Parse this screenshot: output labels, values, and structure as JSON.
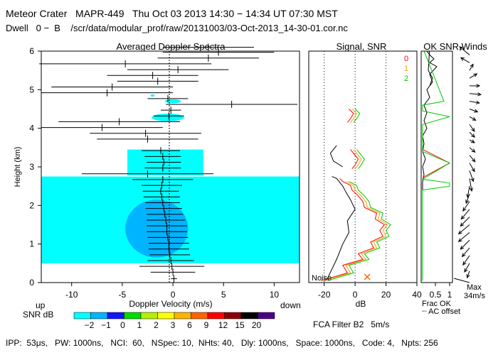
{
  "header": {
    "title": "Meteor Crater   MAPR-449   Thu Oct 03 2013 14:30 − 14:34 UT 07:30 MST",
    "subtitle": "Dwell   0 −  B    /scr/data/modular_prof/raw/20131003/03-Oct-2013_14-30-01.cor.nc"
  },
  "footer": {
    "params": "IPP:  53μs,   PW: 1000ns,   NCI:  60,   NSpec: 10,  NHts: 40,   Dly: 1000ns,   Space: 1000ns,   Code: 4,   Npts: 256",
    "filter": "FCA Filter B2   5m/s"
  },
  "colors": {
    "zero_line": "#000000",
    "red": "#ff0000",
    "orange": "#ffa500",
    "green": "#00c800"
  },
  "chart_data": [
    {
      "type": "heatmap",
      "title": "Averaged Doppler Spectra",
      "xlabel": "Doppler Velocity (m/s)",
      "ylabel": "Height (km)",
      "xlim": [
        -13,
        12.5
      ],
      "ylim": [
        0,
        6
      ],
      "xticks": [
        -10,
        -5,
        0,
        5,
        10
      ],
      "yticks": [
        0,
        1,
        2,
        3,
        4,
        5,
        6
      ],
      "corner_left": "up",
      "corner_right": "down",
      "colorbar": {
        "label": "SNR dB",
        "ticks": [
          "−2",
          "−1",
          "0",
          "1",
          "2",
          "3",
          "6",
          "9",
          "12",
          "15",
          "20"
        ],
        "colors": [
          "#00ffff",
          "#00b4ff",
          "#1414ff",
          "#00dc00",
          "#b4f000",
          "#ffff00",
          "#ffb400",
          "#ff6400",
          "#ff0000",
          "#8b0000",
          "#000000",
          "#4b0082"
        ]
      },
      "blobs": [
        {
          "v": -1.2,
          "h": 1.05,
          "dv": 2.6,
          "dh": 0.18,
          "level": 6
        },
        {
          "v": -1.2,
          "h": 1.05,
          "dv": 3.4,
          "dh": 0.32,
          "level": 5
        },
        {
          "v": -1.3,
          "h": 1.3,
          "dv": 4.0,
          "dh": 0.55,
          "level": 4
        },
        {
          "v": -1.4,
          "h": 1.6,
          "dv": 3.0,
          "dh": 1.0,
          "level": 3
        },
        {
          "v": -1.5,
          "h": 1.5,
          "dv": 5.2,
          "dh": 1.2,
          "level": 2
        },
        {
          "v": -1.6,
          "h": 1.4,
          "dv": 6.2,
          "dh": 1.5,
          "level": 1
        },
        {
          "v": -1.0,
          "h": 3.1,
          "dv": 2.0,
          "dh": 0.2,
          "level": 1
        },
        {
          "v": -1.0,
          "h": 3.1,
          "dv": 3.4,
          "dh": 0.3,
          "level": 0
        },
        {
          "v": -0.5,
          "h": 4.28,
          "dv": 2.0,
          "dh": 0.14,
          "level": 1
        },
        {
          "v": -0.5,
          "h": 4.28,
          "dv": 3.2,
          "dh": 0.2,
          "level": 0
        },
        {
          "v": 0.0,
          "h": 4.7,
          "dv": 1.6,
          "dh": 0.1,
          "level": 0
        },
        {
          "v": -2.0,
          "h": 4.85,
          "dv": 0.4,
          "dh": 0.06,
          "level": 0
        }
      ],
      "bands": [
        {
          "h0": 0.5,
          "h1": 2.75,
          "level": 0
        },
        {
          "h0": 2.78,
          "h1": 3.45,
          "level": 0,
          "v0": -4.5,
          "v1": 3.0
        }
      ],
      "moments": [
        {
          "h": 0.1,
          "v": 0.1,
          "w": 0.3
        },
        {
          "h": 0.27,
          "v": 0.0,
          "w": 2.2
        },
        {
          "h": 0.42,
          "v": -0.1,
          "w": 3.2
        },
        {
          "h": 0.57,
          "v": -0.2,
          "w": 2.3
        },
        {
          "h": 0.72,
          "v": -0.3,
          "w": 2.0
        },
        {
          "h": 0.87,
          "v": -0.4,
          "w": 2.0
        },
        {
          "h": 1.02,
          "v": -0.4,
          "w": 2.0
        },
        {
          "h": 1.17,
          "v": -0.5,
          "w": 2.0
        },
        {
          "h": 1.32,
          "v": -0.6,
          "w": 2.0
        },
        {
          "h": 1.47,
          "v": -0.6,
          "w": 2.0
        },
        {
          "h": 1.62,
          "v": -0.7,
          "w": 1.9
        },
        {
          "h": 1.77,
          "v": -0.8,
          "w": 1.8
        },
        {
          "h": 1.92,
          "v": -0.9,
          "w": 1.8
        },
        {
          "h": 2.07,
          "v": -1.0,
          "w": 1.7
        },
        {
          "h": 2.22,
          "v": -1.1,
          "w": 1.8
        },
        {
          "h": 2.37,
          "v": -1.2,
          "w": 1.8
        },
        {
          "h": 2.52,
          "v": -1.1,
          "w": 2.0
        },
        {
          "h": 2.67,
          "v": -1.0,
          "w": 3.0
        },
        {
          "h": 2.82,
          "v": -2.5,
          "w": 6.5
        },
        {
          "h": 2.97,
          "v": -1.0,
          "w": 1.8
        },
        {
          "h": 3.12,
          "v": -0.9,
          "w": 1.7
        },
        {
          "h": 3.27,
          "v": -1.0,
          "w": 1.8
        },
        {
          "h": 3.42,
          "v": -1.2,
          "w": 1.9
        },
        {
          "h": 3.72,
          "v": -2.5,
          "w": 5.0
        },
        {
          "h": 3.87,
          "v": -2.7,
          "w": 5.5
        },
        {
          "h": 4.02,
          "v": -7.0,
          "w": 6.0
        },
        {
          "h": 4.17,
          "v": -5.3,
          "w": 6.0
        },
        {
          "h": 4.32,
          "v": -0.4,
          "w": 1.5
        },
        {
          "h": 4.47,
          "v": -0.2,
          "w": 1.0
        },
        {
          "h": 4.62,
          "v": 5.8,
          "w": 6.5
        },
        {
          "h": 4.77,
          "v": -0.5,
          "w": 2.0
        },
        {
          "h": 4.92,
          "v": -6.5,
          "w": 6.5
        },
        {
          "h": 5.07,
          "v": -6.0,
          "w": 6.0
        },
        {
          "h": 5.22,
          "v": -1.5,
          "w": 4.0
        },
        {
          "h": 5.37,
          "v": -2.0,
          "w": 4.5
        },
        {
          "h": 5.52,
          "v": 0.5,
          "w": 5.0
        },
        {
          "h": 5.67,
          "v": -4.7,
          "w": 8.5
        },
        {
          "h": 5.82,
          "v": 3.5,
          "w": 5.0
        },
        {
          "h": 5.97,
          "v": 4.5,
          "w": 5.5
        },
        {
          "h": 6.1,
          "v": 3.5,
          "w": 4.5
        }
      ]
    },
    {
      "type": "line",
      "title": "Signal, SNR",
      "xlabel": "dB",
      "xlim": [
        -30,
        40
      ],
      "ylim": [
        0,
        6
      ],
      "xticks": [
        -20,
        0,
        20,
        40
      ],
      "noise_label": "Noise",
      "legend_labels": [
        "0",
        "1",
        "2"
      ],
      "dotted_x": [
        -20,
        0,
        20
      ],
      "segments": [
        {
          "series": [
            {
              "name": "0",
              "x": [
                -22,
                -5,
                -8,
                5,
                2,
                12,
                10,
                18,
                16,
                19,
                13,
                14,
                6,
                5,
                2,
                -2,
                -3,
                -8,
                -10
              ],
              "y": [
                0.05,
                0.25,
                0.45,
                0.6,
                0.75,
                0.9,
                1.05,
                1.2,
                1.35,
                1.5,
                1.65,
                1.8,
                1.95,
                2.1,
                2.25,
                2.4,
                2.52,
                2.62,
                2.7
              ]
            },
            {
              "name": "1",
              "x": [
                -20,
                -3,
                -6,
                7,
                4,
                14,
                12,
                20,
                18,
                21,
                15,
                16,
                8,
                7,
                4,
                0,
                -1,
                -6
              ],
              "y": [
                0.05,
                0.25,
                0.45,
                0.6,
                0.75,
                0.9,
                1.05,
                1.2,
                1.35,
                1.5,
                1.65,
                1.8,
                1.95,
                2.1,
                2.25,
                2.4,
                2.52,
                2.62
              ]
            },
            {
              "name": "2",
              "x": [
                -18,
                -1,
                -4,
                9,
                6,
                16,
                14,
                22,
                20,
                23,
                17,
                18,
                10,
                9,
                6,
                2,
                1,
                -4
              ],
              "y": [
                0.05,
                0.25,
                0.45,
                0.6,
                0.75,
                0.9,
                1.05,
                1.2,
                1.35,
                1.5,
                1.65,
                1.8,
                1.95,
                2.1,
                2.25,
                2.4,
                2.52,
                2.62
              ]
            },
            {
              "name": "noise",
              "x": [
                -18,
                -12,
                -8,
                -4,
                -5,
                0,
                -3,
                -6,
                -8,
                -10,
                -12,
                -15
              ],
              "y": [
                0.1,
                0.6,
                1.0,
                1.3,
                1.6,
                1.9,
                2.15,
                2.35,
                2.5,
                2.6,
                2.7,
                2.75
              ]
            }
          ]
        },
        {
          "series": [
            {
              "name": "0",
              "x": [
                -2,
                0,
                2,
                -1,
                -3
              ],
              "y": [
                2.95,
                3.05,
                3.2,
                3.35,
                3.45
              ]
            },
            {
              "name": "1",
              "x": [
                0,
                2,
                4,
                1,
                -1
              ],
              "y": [
                2.95,
                3.05,
                3.2,
                3.35,
                3.45
              ]
            },
            {
              "name": "2",
              "x": [
                2,
                4,
                6,
                3,
                1
              ],
              "y": [
                2.95,
                3.05,
                3.2,
                3.35,
                3.45
              ]
            },
            {
              "name": "noise",
              "x": [
                -8,
                -14,
                -16,
                -12
              ],
              "y": [
                3.0,
                3.15,
                3.35,
                3.55
              ]
            }
          ]
        },
        {
          "series": [
            {
              "name": "0",
              "x": [
                -5,
                -3,
                -1,
                -4
              ],
              "y": [
                4.15,
                4.25,
                4.38,
                4.5
              ]
            },
            {
              "name": "1",
              "x": [
                -3,
                -1,
                1,
                -2
              ],
              "y": [
                4.15,
                4.25,
                4.38,
                4.5
              ]
            },
            {
              "name": "2",
              "x": [
                -1,
                1,
                3,
                0
              ],
              "y": [
                4.15,
                4.25,
                4.38,
                4.5
              ]
            }
          ]
        }
      ]
    },
    {
      "type": "line",
      "title": "OK SNR,Winds",
      "xlim": [
        0,
        1.1
      ],
      "ylim": [
        0,
        6
      ],
      "xtick_labels": [
        "0.5",
        "1"
      ],
      "xticks": [
        0.5,
        1
      ],
      "legend": [
        "Frac OK",
        "┈ AC offset"
      ],
      "max_label": "Max",
      "max_value": "34m/s",
      "frac_ok": {
        "x": [
          0.05,
          0.05,
          1.0,
          1.0,
          0.05,
          1.0,
          0.05,
          0.05,
          1.0,
          0.05,
          0.05,
          0.8,
          0.05
        ],
        "y": [
          0.05,
          2.4,
          2.5,
          2.58,
          2.68,
          3.1,
          3.4,
          4.1,
          4.3,
          4.45,
          4.6,
          4.7,
          6.1
        ]
      },
      "frac_ok_red": {
        "x": [
          0.05,
          1.0,
          0.05,
          0.05
        ],
        "y": [
          2.72,
          3.1,
          3.45,
          4.1
        ]
      },
      "ac_offset": {
        "x": [
          0.05,
          0.05,
          0.1,
          0.05,
          0.15,
          0.05,
          0.1,
          0.05,
          0.2,
          0.1,
          0.2,
          0.1,
          0.3,
          0.2,
          0.4,
          0.3,
          0.55,
          0.3,
          0.45,
          0.3,
          0.2,
          0.3,
          0.25,
          0.4,
          0.3
        ],
        "y": [
          0.05,
          2.6,
          2.8,
          3.0,
          3.2,
          3.4,
          3.6,
          3.8,
          4.0,
          4.2,
          4.4,
          4.6,
          4.8,
          5.0,
          5.2,
          5.4,
          5.6,
          5.7,
          5.8,
          5.9,
          6.0,
          6.1,
          5.5,
          5.3,
          5.1
        ]
      },
      "wind_arrows": [
        {
          "h": 0.3,
          "dir": 200,
          "len": 10
        },
        {
          "h": 0.5,
          "dir": 210,
          "len": 14
        },
        {
          "h": 0.7,
          "dir": 215,
          "len": 16
        },
        {
          "h": 0.9,
          "dir": 220,
          "len": 16
        },
        {
          "h": 1.1,
          "dir": 225,
          "len": 18
        },
        {
          "h": 1.3,
          "dir": 230,
          "len": 20
        },
        {
          "h": 1.5,
          "dir": 230,
          "len": 20
        },
        {
          "h": 1.7,
          "dir": 225,
          "len": 18
        },
        {
          "h": 1.9,
          "dir": 220,
          "len": 18
        },
        {
          "h": 2.1,
          "dir": 215,
          "len": 16
        },
        {
          "h": 2.3,
          "dir": 200,
          "len": 14
        },
        {
          "h": 2.5,
          "dir": 190,
          "len": 16
        },
        {
          "h": 2.7,
          "dir": 170,
          "len": 18
        },
        {
          "h": 2.9,
          "dir": 160,
          "len": 16
        },
        {
          "h": 3.1,
          "dir": 150,
          "len": 14
        },
        {
          "h": 3.3,
          "dir": 140,
          "len": 12
        },
        {
          "h": 3.5,
          "dir": 130,
          "len": 10
        },
        {
          "h": 3.7,
          "dir": 120,
          "len": 8
        },
        {
          "h": 3.9,
          "dir": 135,
          "len": 10
        },
        {
          "h": 4.1,
          "dir": 145,
          "len": 12
        },
        {
          "h": 4.3,
          "dir": 120,
          "len": 10
        },
        {
          "h": 4.5,
          "dir": 110,
          "len": 12
        },
        {
          "h": 4.7,
          "dir": 100,
          "len": 14
        },
        {
          "h": 4.9,
          "dir": 95,
          "len": 16
        },
        {
          "h": 5.1,
          "dir": 90,
          "len": 14
        },
        {
          "h": 5.3,
          "dir": 60,
          "len": 12
        },
        {
          "h": 5.5,
          "dir": 30,
          "len": 10
        },
        {
          "h": 5.7,
          "dir": 300,
          "len": 14
        },
        {
          "h": 5.9,
          "dir": 310,
          "len": 18
        }
      ]
    }
  ]
}
